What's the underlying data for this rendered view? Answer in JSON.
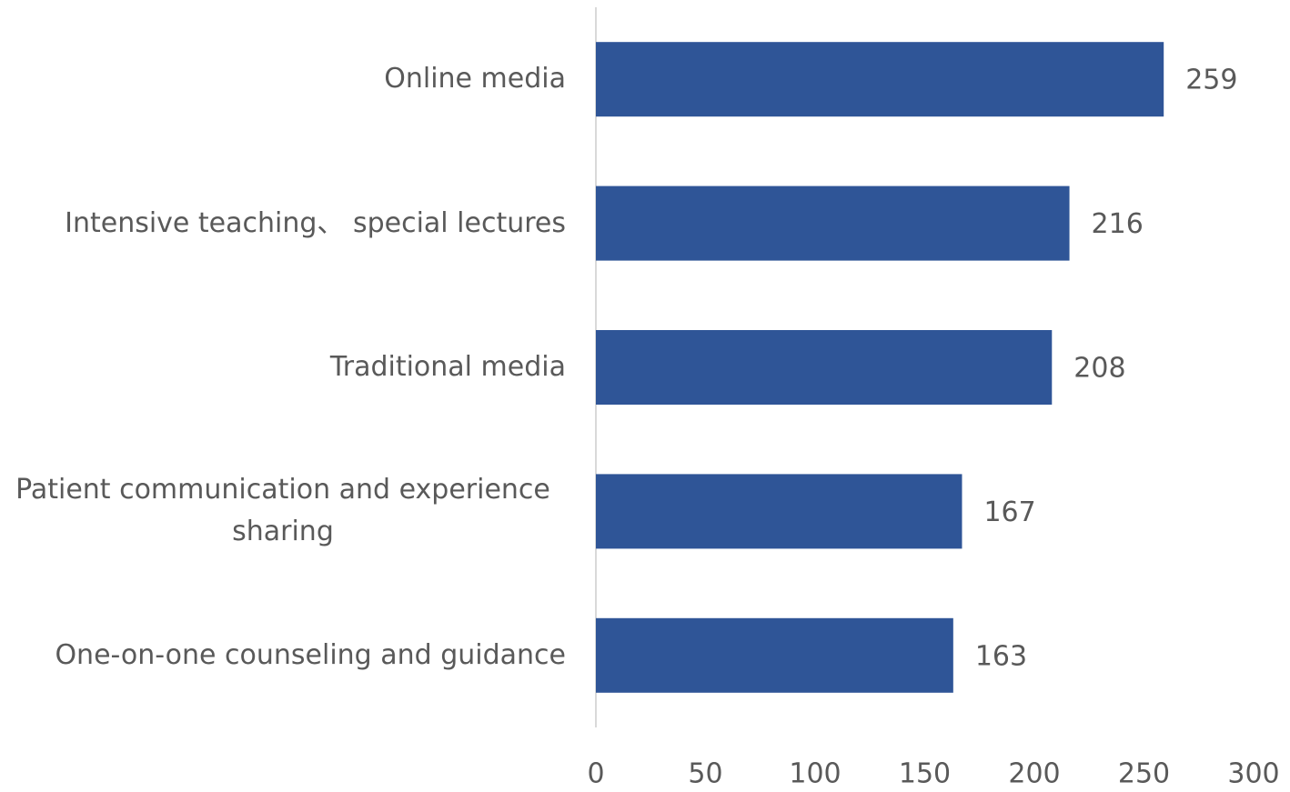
{
  "chart_data": {
    "type": "barh",
    "categories": [
      "Online media",
      "Intensive teaching、 special lectures",
      "Traditional media",
      "Patient communication and experience sharing",
      "One-on-one counseling and guidance"
    ],
    "values": [
      259,
      216,
      208,
      167,
      163
    ],
    "color": "#2f5597",
    "xlim": [
      0,
      300
    ],
    "xticks": [
      0,
      50,
      100,
      150,
      200,
      250,
      300
    ],
    "grid": false
  }
}
